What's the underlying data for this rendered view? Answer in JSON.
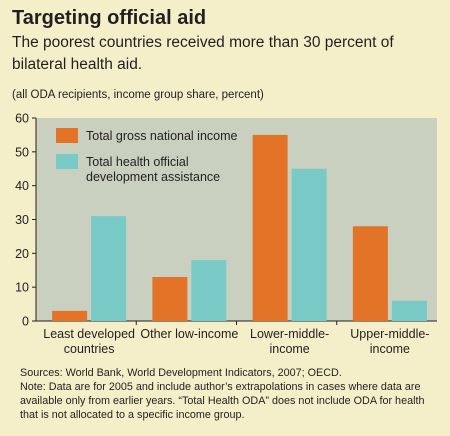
{
  "title": "Targeting official aid",
  "subtitle": "The poorest countries received more than 30 percent of bilateral health aid.",
  "note_top": "(all ODA recipients, income group share, percent)",
  "chart_data": {
    "type": "bar",
    "categories": [
      [
        "Least developed",
        "countries"
      ],
      [
        "Other low-income"
      ],
      [
        "Lower-middle-",
        "income"
      ],
      [
        "Upper-middle-",
        "income"
      ]
    ],
    "series": [
      {
        "name": [
          "Total gross national income"
        ],
        "values": [
          3,
          13,
          55,
          28
        ],
        "color": "#e27327"
      },
      {
        "name": [
          "Total health official",
          "development assistance"
        ],
        "values": [
          31,
          18,
          45,
          6
        ],
        "color": "#79c9c6"
      }
    ],
    "ylim": [
      0,
      60
    ],
    "yticks": [
      0,
      10,
      20,
      30,
      40,
      50,
      60
    ],
    "grid": false,
    "legend_position": "top-left",
    "plot_background": "#c9d0bf"
  },
  "sources_line": "Sources: World Bank, World Development Indicators, 2007; OECD.",
  "note_line": "Note: Data are for 2005 and include author’s extrapolations in cases where data are available only from earlier years. “Total Health ODA” does not include ODA for health that is not allocated to a specific income group."
}
